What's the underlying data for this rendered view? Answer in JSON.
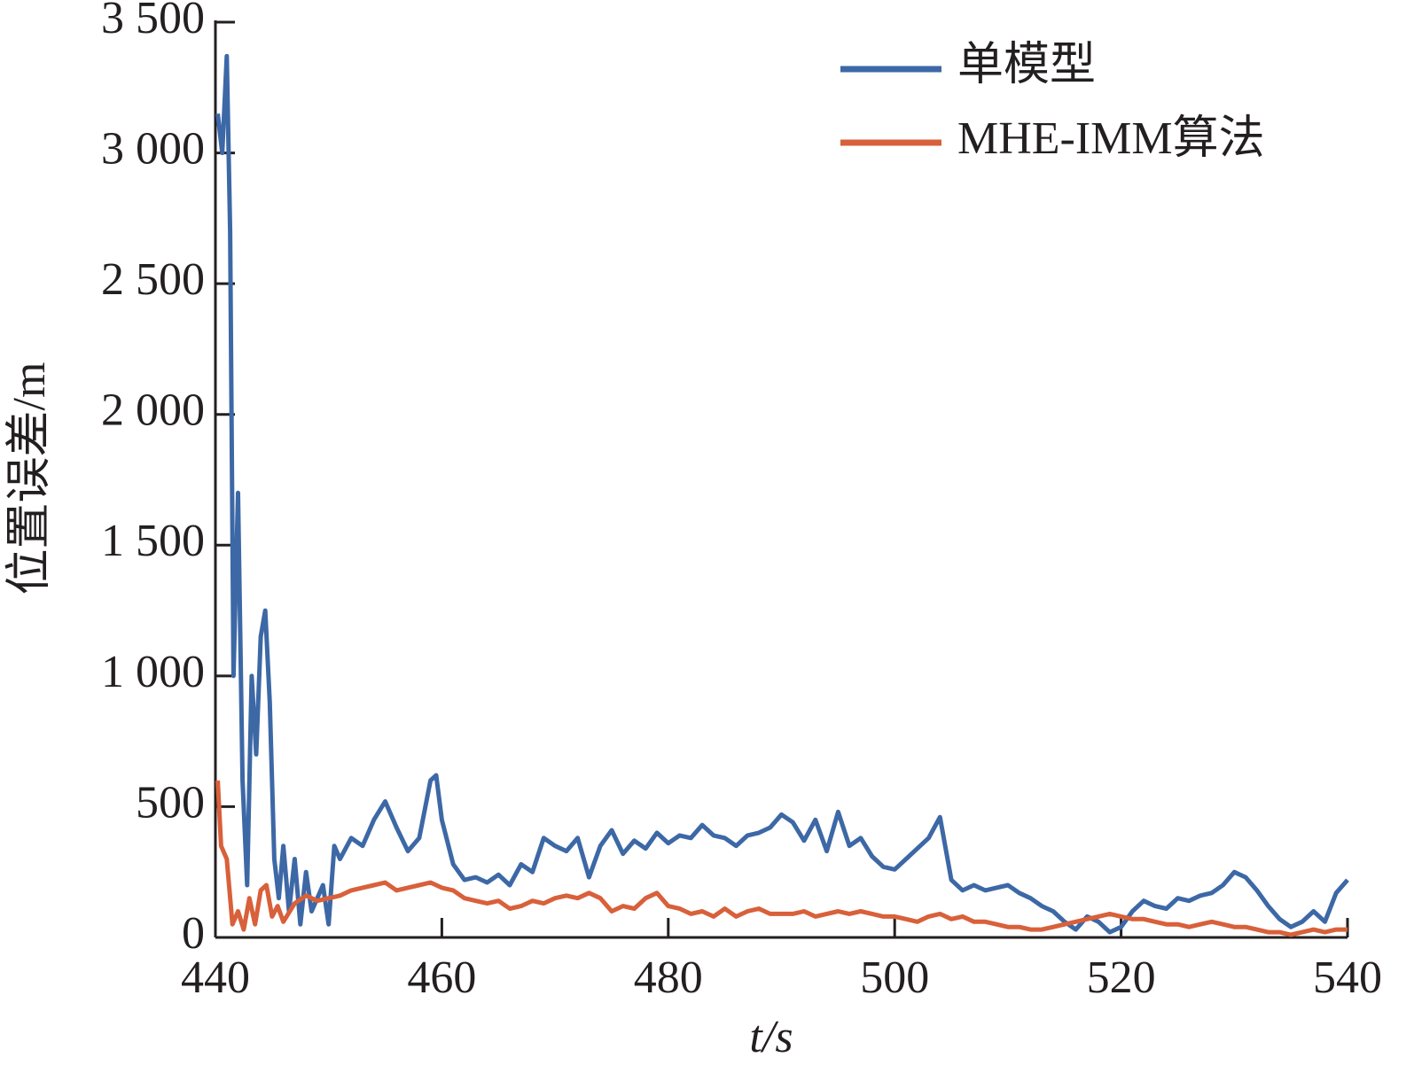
{
  "chart_data": {
    "type": "line",
    "xlabel": "t/s",
    "ylabel": "位置误差/m",
    "xlim": [
      440,
      540
    ],
    "xticks": [
      440,
      460,
      480,
      500,
      520,
      540
    ],
    "ylim": [
      0,
      3500
    ],
    "yticks": [
      0,
      500,
      {
        "value": 1000,
        "label": "1 000"
      },
      {
        "value": 1500,
        "label": "1 500"
      },
      {
        "value": 2000,
        "label": "2 000"
      },
      {
        "value": 2500,
        "label": "2 500"
      },
      {
        "value": 3000,
        "label": "3 000"
      },
      {
        "value": 3500,
        "label": "3 500"
      }
    ],
    "legend": "upper right",
    "grid": false,
    "series": [
      {
        "name": "单模型",
        "color": "#3d68a6",
        "x": [
          440.2,
          440.6,
          441,
          441.3,
          441.6,
          442,
          442.4,
          442.8,
          443.2,
          443.6,
          444,
          444.4,
          444.8,
          445.2,
          445.6,
          446,
          446.5,
          447,
          447.5,
          448,
          448.5,
          449,
          449.5,
          450,
          450.5,
          451,
          452,
          453,
          454,
          455,
          456,
          457,
          458,
          459,
          459.5,
          460,
          461,
          462,
          463,
          464,
          465,
          466,
          467,
          468,
          469,
          470,
          471,
          472,
          473,
          474,
          475,
          476,
          477,
          478,
          479,
          480,
          481,
          482,
          483,
          484,
          485,
          486,
          487,
          488,
          489,
          490,
          491,
          492,
          493,
          494,
          495,
          496,
          497,
          498,
          499,
          500,
          501,
          502,
          503,
          504,
          505,
          506,
          507,
          508,
          509,
          510,
          511,
          512,
          513,
          514,
          515,
          516,
          517,
          518,
          519,
          520,
          521,
          522,
          523,
          524,
          525,
          526,
          527,
          528,
          529,
          530,
          531,
          532,
          533,
          534,
          535,
          536,
          537,
          538,
          539,
          540
        ],
        "values": [
          3150,
          3000,
          3370,
          2700,
          1000,
          1700,
          600,
          200,
          1000,
          700,
          1150,
          1250,
          900,
          300,
          150,
          350,
          100,
          300,
          50,
          250,
          100,
          150,
          200,
          50,
          350,
          300,
          380,
          350,
          450,
          520,
          420,
          330,
          380,
          600,
          620,
          450,
          280,
          220,
          230,
          210,
          240,
          200,
          280,
          250,
          380,
          350,
          330,
          380,
          230,
          350,
          410,
          320,
          370,
          340,
          400,
          360,
          390,
          380,
          430,
          390,
          380,
          350,
          390,
          400,
          420,
          470,
          440,
          370,
          450,
          330,
          480,
          350,
          380,
          310,
          270,
          260,
          300,
          340,
          380,
          460,
          220,
          180,
          200,
          180,
          190,
          200,
          170,
          150,
          120,
          100,
          60,
          30,
          80,
          60,
          20,
          40,
          100,
          140,
          120,
          110,
          150,
          140,
          160,
          170,
          200,
          250,
          230,
          180,
          120,
          70,
          40,
          60,
          100,
          60,
          170,
          220
        ]
      },
      {
        "name": "MHE-IMM算法",
        "color": "#d8603a",
        "x": [
          440.2,
          440.5,
          441,
          441.5,
          442,
          442.5,
          443,
          443.5,
          444,
          444.5,
          445,
          445.5,
          446,
          447,
          448,
          449,
          450,
          451,
          452,
          453,
          454,
          455,
          456,
          457,
          458,
          459,
          460,
          461,
          462,
          463,
          464,
          465,
          466,
          467,
          468,
          469,
          470,
          471,
          472,
          473,
          474,
          475,
          476,
          477,
          478,
          479,
          480,
          481,
          482,
          483,
          484,
          485,
          486,
          487,
          488,
          489,
          490,
          491,
          492,
          493,
          494,
          495,
          496,
          497,
          498,
          499,
          500,
          501,
          502,
          503,
          504,
          505,
          506,
          507,
          508,
          509,
          510,
          511,
          512,
          513,
          514,
          515,
          516,
          517,
          518,
          519,
          520,
          521,
          522,
          523,
          524,
          525,
          526,
          527,
          528,
          529,
          530,
          531,
          532,
          533,
          534,
          535,
          536,
          537,
          538,
          539,
          540
        ],
        "values": [
          600,
          350,
          300,
          50,
          100,
          30,
          150,
          50,
          180,
          200,
          80,
          120,
          60,
          130,
          160,
          140,
          150,
          160,
          180,
          190,
          200,
          210,
          180,
          190,
          200,
          210,
          190,
          180,
          150,
          140,
          130,
          140,
          110,
          120,
          140,
          130,
          150,
          160,
          150,
          170,
          150,
          100,
          120,
          110,
          150,
          170,
          120,
          110,
          90,
          100,
          80,
          110,
          80,
          100,
          110,
          90,
          90,
          90,
          100,
          80,
          90,
          100,
          90,
          100,
          90,
          80,
          80,
          70,
          60,
          80,
          90,
          70,
          80,
          60,
          60,
          50,
          40,
          40,
          30,
          30,
          40,
          50,
          60,
          70,
          80,
          90,
          80,
          70,
          70,
          60,
          50,
          50,
          40,
          50,
          60,
          50,
          40,
          40,
          30,
          20,
          20,
          10,
          20,
          30,
          20,
          30,
          30
        ]
      }
    ]
  }
}
